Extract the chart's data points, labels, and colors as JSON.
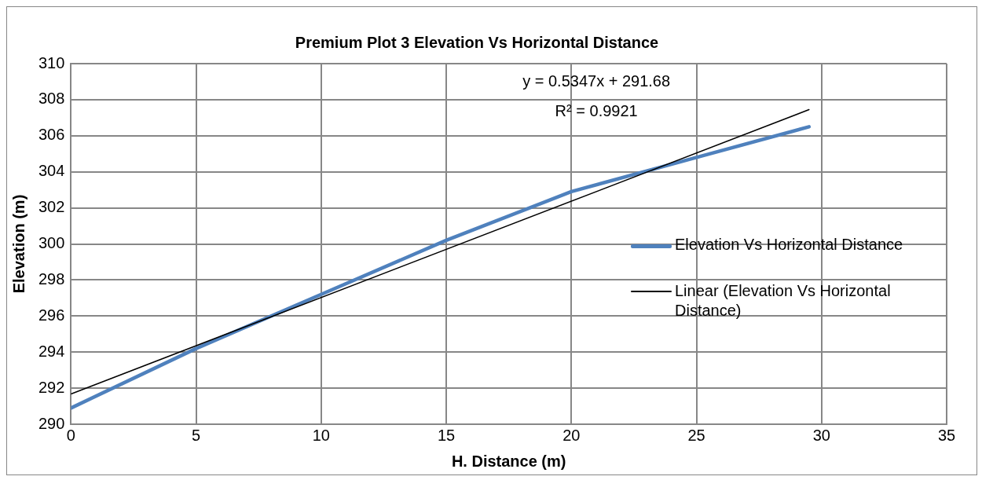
{
  "chart_data": {
    "type": "line",
    "title": "Premium Plot 3 Elevation Vs Horizontal Distance",
    "xlabel": "H. Distance (m)",
    "ylabel": "Elevation (m)",
    "x": [
      0,
      5,
      10,
      15,
      20,
      25,
      29.5
    ],
    "series": [
      {
        "name": "Elevation Vs Horizontal Distance",
        "color": "#4f81bd",
        "values": [
          290.9,
          294.2,
          297.2,
          300.2,
          302.9,
          304.8,
          306.5
        ]
      },
      {
        "name": "Linear (Elevation Vs Horizontal Distance)",
        "type": "line",
        "color": "#000000",
        "x": [
          0,
          29.5
        ],
        "values": [
          291.68,
          307.45
        ]
      }
    ],
    "xlim": [
      0,
      35
    ],
    "xticks": [
      0,
      5,
      10,
      15,
      20,
      25,
      30,
      35
    ],
    "ylim": [
      290,
      310
    ],
    "yticks": [
      290,
      292,
      294,
      296,
      298,
      300,
      302,
      304,
      306,
      308,
      310
    ],
    "grid": true,
    "legend": "right",
    "marker": "none",
    "annotations": [
      "y = 0.5347x + 291.68",
      "R² = 0.9921"
    ]
  }
}
